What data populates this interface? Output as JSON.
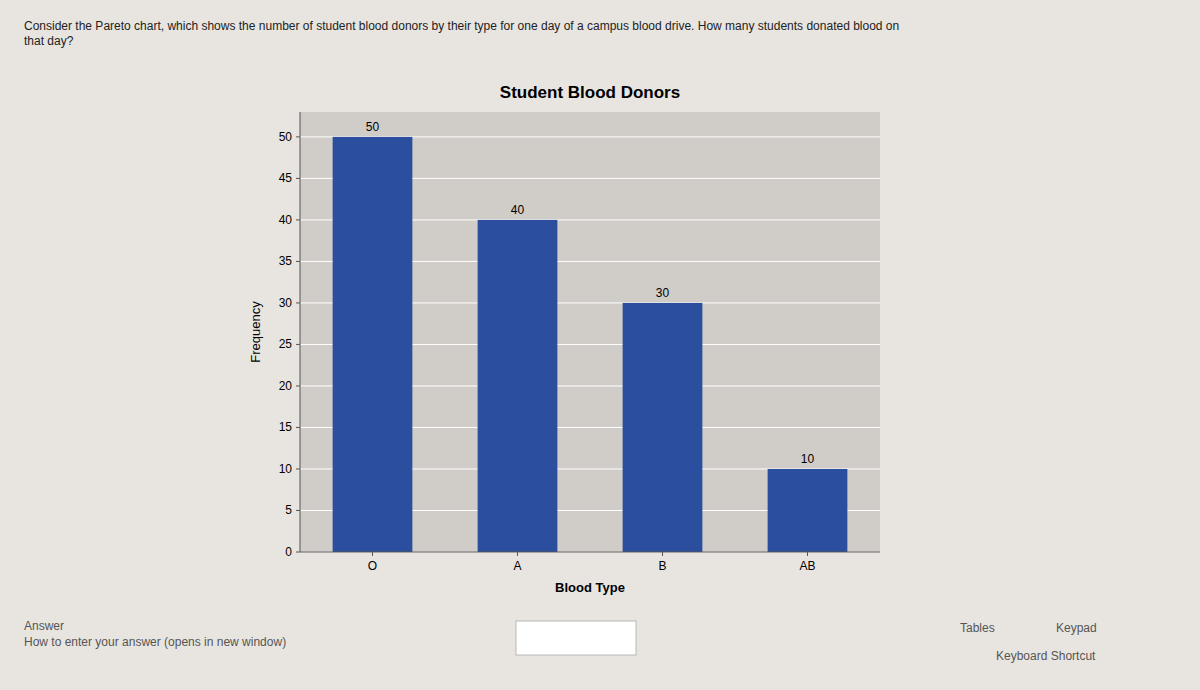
{
  "chart_data": {
    "type": "bar",
    "title": "Student Blood Donors",
    "x_label": "Blood Type",
    "y_label": "Frequency",
    "categories": [
      "O",
      "A",
      "B",
      "AB"
    ],
    "values": [
      50,
      40,
      30,
      10
    ],
    "color": "#2B4E9E",
    "ylim": [
      0,
      53
    ],
    "yticks": [
      0,
      5,
      10,
      15,
      20,
      25,
      30,
      35,
      40,
      45,
      50
    ],
    "grid": true,
    "data_labels": true,
    "annotations": [
      "Consider the Pareto chart, which shows the number of student blood donors by their type for one day of a campus blood drive. How many students donated blood on\nthat day?",
      "Answer\nHow to enter your answer (opens in new window)",
      "Tables",
      "Keypad",
      "Keyboard Shortcut"
    ]
  }
}
